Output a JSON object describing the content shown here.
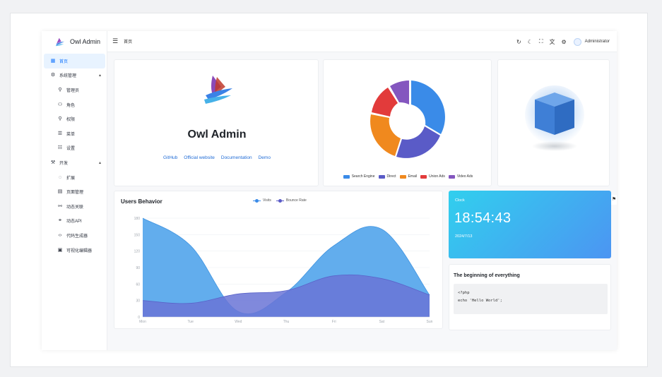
{
  "brand": {
    "name": "Owl Admin"
  },
  "header": {
    "breadcrumb": "首页",
    "user": "Administrator"
  },
  "sidebar": {
    "items": [
      {
        "label": "首页",
        "icon": "dashboard-icon",
        "glyph": "▦",
        "level": 1,
        "active": true
      },
      {
        "label": "系统管理",
        "icon": "gear-icon",
        "glyph": "⚙",
        "level": 1,
        "caret": "▴"
      },
      {
        "label": "管理员",
        "icon": "user-key-icon",
        "glyph": "⚲",
        "level": 2
      },
      {
        "label": "角色",
        "icon": "users-icon",
        "glyph": "⚇",
        "level": 2
      },
      {
        "label": "权限",
        "icon": "search-icon",
        "glyph": "⚲",
        "level": 2
      },
      {
        "label": "菜单",
        "icon": "list-icon",
        "glyph": "☰",
        "level": 2
      },
      {
        "label": "设置",
        "icon": "sliders-icon",
        "glyph": "☷",
        "level": 2
      },
      {
        "label": "开发",
        "icon": "code-icon",
        "glyph": "⚒",
        "level": 1,
        "caret": "▴"
      },
      {
        "label": "扩展",
        "icon": "extension-icon",
        "glyph": "◌",
        "level": 2
      },
      {
        "label": "页面管理",
        "icon": "page-icon",
        "glyph": "▤",
        "level": 2
      },
      {
        "label": "动态关联",
        "icon": "link-icon",
        "glyph": "⚯",
        "level": 2
      },
      {
        "label": "动态API",
        "icon": "api-icon",
        "glyph": "⚭",
        "level": 2
      },
      {
        "label": "代码生成器",
        "icon": "code-brackets-icon",
        "glyph": "‹›",
        "level": 2
      },
      {
        "label": "可视化编辑器",
        "icon": "editor-icon",
        "glyph": "▣",
        "level": 2
      }
    ]
  },
  "hero": {
    "title": "Owl Admin",
    "links": [
      "GitHub",
      "Official website",
      "Documentation",
      "Demo"
    ]
  },
  "donut": {
    "legend": [
      "Search Engine",
      "Direct",
      "Email",
      "Union Ads",
      "Video Ads"
    ],
    "colors": [
      "#3a8be8",
      "#5a5bc7",
      "#f0891e",
      "#e23b3b",
      "#8456bf"
    ]
  },
  "clock": {
    "label": "Clock",
    "time": "18:54:43",
    "date": "2024/7/13"
  },
  "code": {
    "title": "The beginning of everything",
    "lines": [
      "<?php",
      "",
      "echo 'Hello World';"
    ]
  },
  "chart_data": {
    "type": "area",
    "title": "Users Behavior",
    "categories": [
      "Mon",
      "Tue",
      "Wed",
      "Thu",
      "Fri",
      "Sat",
      "Sun"
    ],
    "yticks": [
      0,
      30,
      60,
      90,
      120,
      150,
      180
    ],
    "ylim": [
      0,
      180
    ],
    "series": [
      {
        "name": "Visits",
        "values": [
          180,
          130,
          10,
          45,
          130,
          160,
          40
        ],
        "color": "#5aa9ec"
      },
      {
        "name": "Bounce Rate",
        "values": [
          30,
          25,
          42,
          48,
          75,
          70,
          40
        ],
        "color": "#6a74d6"
      }
    ],
    "legend_position": "top-center"
  }
}
